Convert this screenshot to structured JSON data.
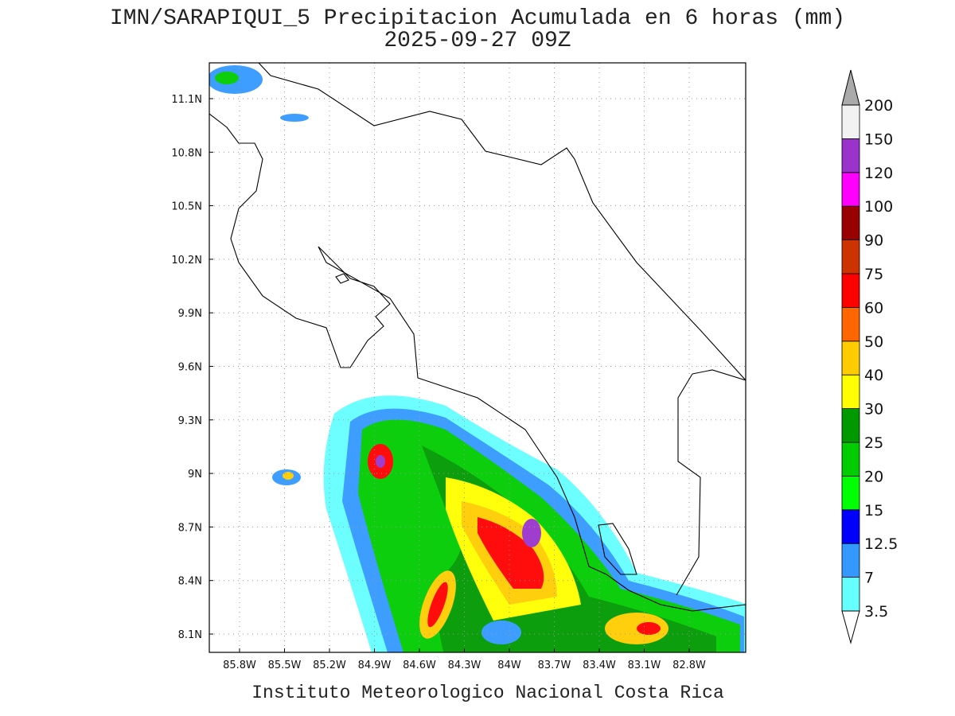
{
  "title": "IMN/SARAPIQUI_5 Precipitacion Acumulada en 6 horas (mm)",
  "subtitle": "2025-09-27 09Z",
  "lat_labels": [
    "11.1N",
    "10.8N",
    "10.5N",
    "10.2N",
    "9.9N",
    "9.6N",
    "9.3N",
    "9N",
    "8.7N",
    "8.4N",
    "8.1N"
  ],
  "lon_labels": [
    "85.8W",
    "85.5W",
    "85.2W",
    "84.9W",
    "84.6W",
    "84.3W",
    "84W",
    "83.7W",
    "83.4W",
    "83.1W",
    "82.8W"
  ],
  "colorbar": {
    "labels": [
      "3.5",
      "7",
      "12.5",
      "15",
      "20",
      "25",
      "30",
      "40",
      "50",
      "60",
      "75",
      "90",
      "100",
      "120",
      "150",
      "200"
    ],
    "colors": [
      "#66ffff",
      "#3399ff",
      "#0000ff",
      "#00ff00",
      "#00cc00",
      "#009900",
      "#ffff00",
      "#ffcc00",
      "#ff6600",
      "#ff0000",
      "#cc3300",
      "#990000",
      "#ff00ff",
      "#9933cc",
      "#f2f2f2"
    ],
    "below_color": "#ffffff",
    "above_color": "#aaaaaa"
  },
  "footer": "Instituto Meteorologico Nacional Costa Rica"
}
